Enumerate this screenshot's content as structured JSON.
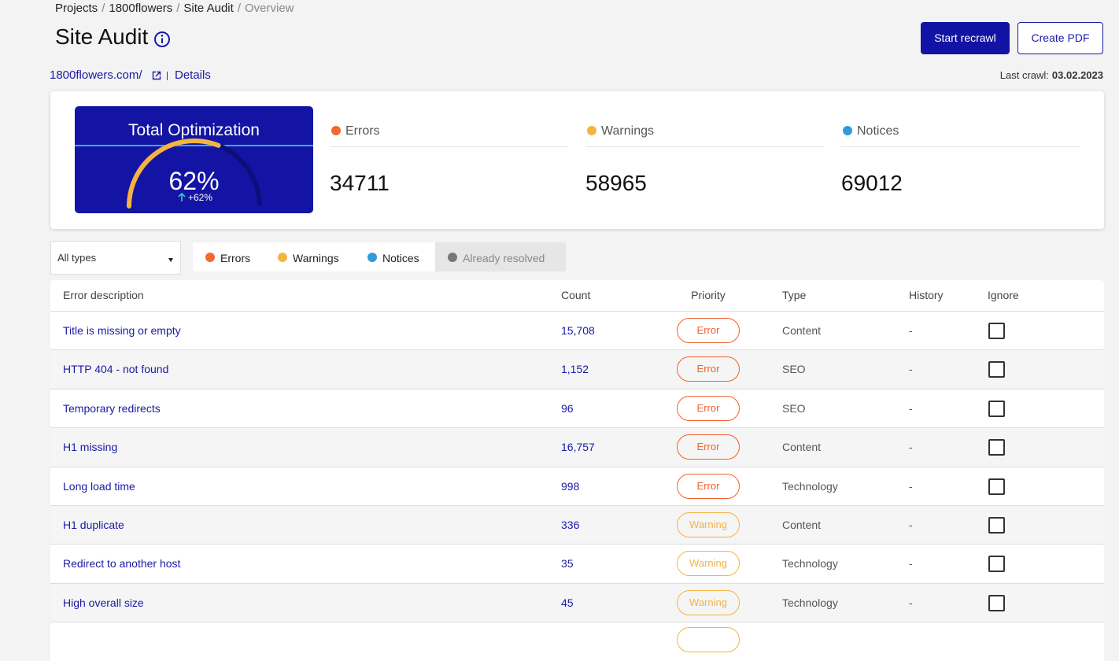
{
  "breadcrumb": {
    "items": [
      "Projects",
      "1800flowers",
      "Site Audit",
      "Overview"
    ],
    "separator": "/"
  },
  "header": {
    "title": "Site Audit",
    "buttons": [
      "Start recrawl",
      "Create PDF"
    ]
  },
  "site": {
    "url": "1800flowers.com/",
    "details": "Details"
  },
  "last_crawl": {
    "label": "Last crawl:",
    "date": "03.02.2023"
  },
  "summary": {
    "title": "Total Optimization",
    "score": {
      "value": 62,
      "label": "62%"
    },
    "change": "+62%",
    "stats": [
      {
        "name": "Errors",
        "count": "34711",
        "color": "#f26a2e"
      },
      {
        "name": "Warnings",
        "count": "58965",
        "color": "#f5b342"
      },
      {
        "name": "Notices",
        "count": "69012",
        "color": "#2f9bdc"
      }
    ]
  },
  "filters": {
    "select": "All types",
    "tabs": [
      {
        "name": "Errors",
        "color": "#f26a2e"
      },
      {
        "name": "Warnings",
        "color": "#f5b342"
      },
      {
        "name": "Notices",
        "color": "#2f9bdc"
      },
      {
        "name": "Already resolved",
        "color": "#777777"
      }
    ]
  },
  "table": {
    "columns": [
      "Error description",
      "Count",
      "Priority",
      "Type",
      "History",
      "Ignore"
    ],
    "rows": [
      {
        "description": "Title is missing or empty",
        "count": "15,708",
        "priority": "Error",
        "priority_color": "#f0622d",
        "type": "Content",
        "history": "-"
      },
      {
        "description": "HTTP 404 - not found",
        "count": "1,152",
        "priority": "Error",
        "priority_color": "#f0622d",
        "type": "SEO",
        "history": "-"
      },
      {
        "description": "Temporary redirects",
        "count": "96",
        "priority": "Error",
        "priority_color": "#f0622d",
        "type": "SEO",
        "history": "-"
      },
      {
        "description": "H1 missing",
        "count": "16,757",
        "priority": "Error",
        "priority_color": "#f0622d",
        "type": "Content",
        "history": "-"
      },
      {
        "description": "Long load time",
        "count": "998",
        "priority": "Error",
        "priority_color": "#f0622d",
        "type": "Technology",
        "history": "-"
      },
      {
        "description": "H1 duplicate",
        "count": "336",
        "priority": "Warning",
        "priority_color": "#f5b342",
        "type": "Content",
        "history": "-"
      },
      {
        "description": "Redirect to another host",
        "count": "35",
        "priority": "Warning",
        "priority_color": "#f5b342",
        "type": "Technology",
        "history": "-"
      },
      {
        "description": "High overall size",
        "count": "45",
        "priority": "Warning",
        "priority_color": "#f5b342",
        "type": "Technology",
        "history": "-"
      }
    ]
  }
}
